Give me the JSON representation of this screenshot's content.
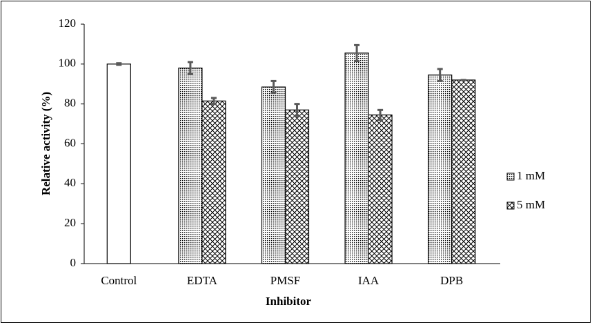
{
  "chart_data": {
    "type": "bar",
    "x_label": "Inhibitor",
    "y_label": "Relative activity (%)",
    "categories": [
      "Control",
      "EDTA",
      "PMSF",
      "IAA",
      "DPB"
    ],
    "series": [
      {
        "color": "#ffffff",
        "pattern": "solid",
        "values": [
          100,
          null,
          null,
          null,
          null
        ],
        "errors": [
          0.4,
          null,
          null,
          null,
          null
        ]
      },
      {
        "name": "1 mM",
        "color": "#000000",
        "pattern": "dots",
        "values": [
          null,
          98,
          88.5,
          105.5,
          94.5
        ],
        "errors": [
          null,
          3,
          3,
          4,
          3
        ]
      },
      {
        "name": "5 mM",
        "color": "#000000",
        "pattern": "crosshatch",
        "values": [
          null,
          81.5,
          77,
          74.5,
          92
        ],
        "errors": [
          null,
          1.5,
          3,
          2.5,
          0
        ]
      }
    ],
    "ylim": [
      0,
      120
    ],
    "yticks": [
      0,
      20,
      40,
      60,
      80,
      100,
      120
    ],
    "legend": "right",
    "error_color": "#595959"
  }
}
